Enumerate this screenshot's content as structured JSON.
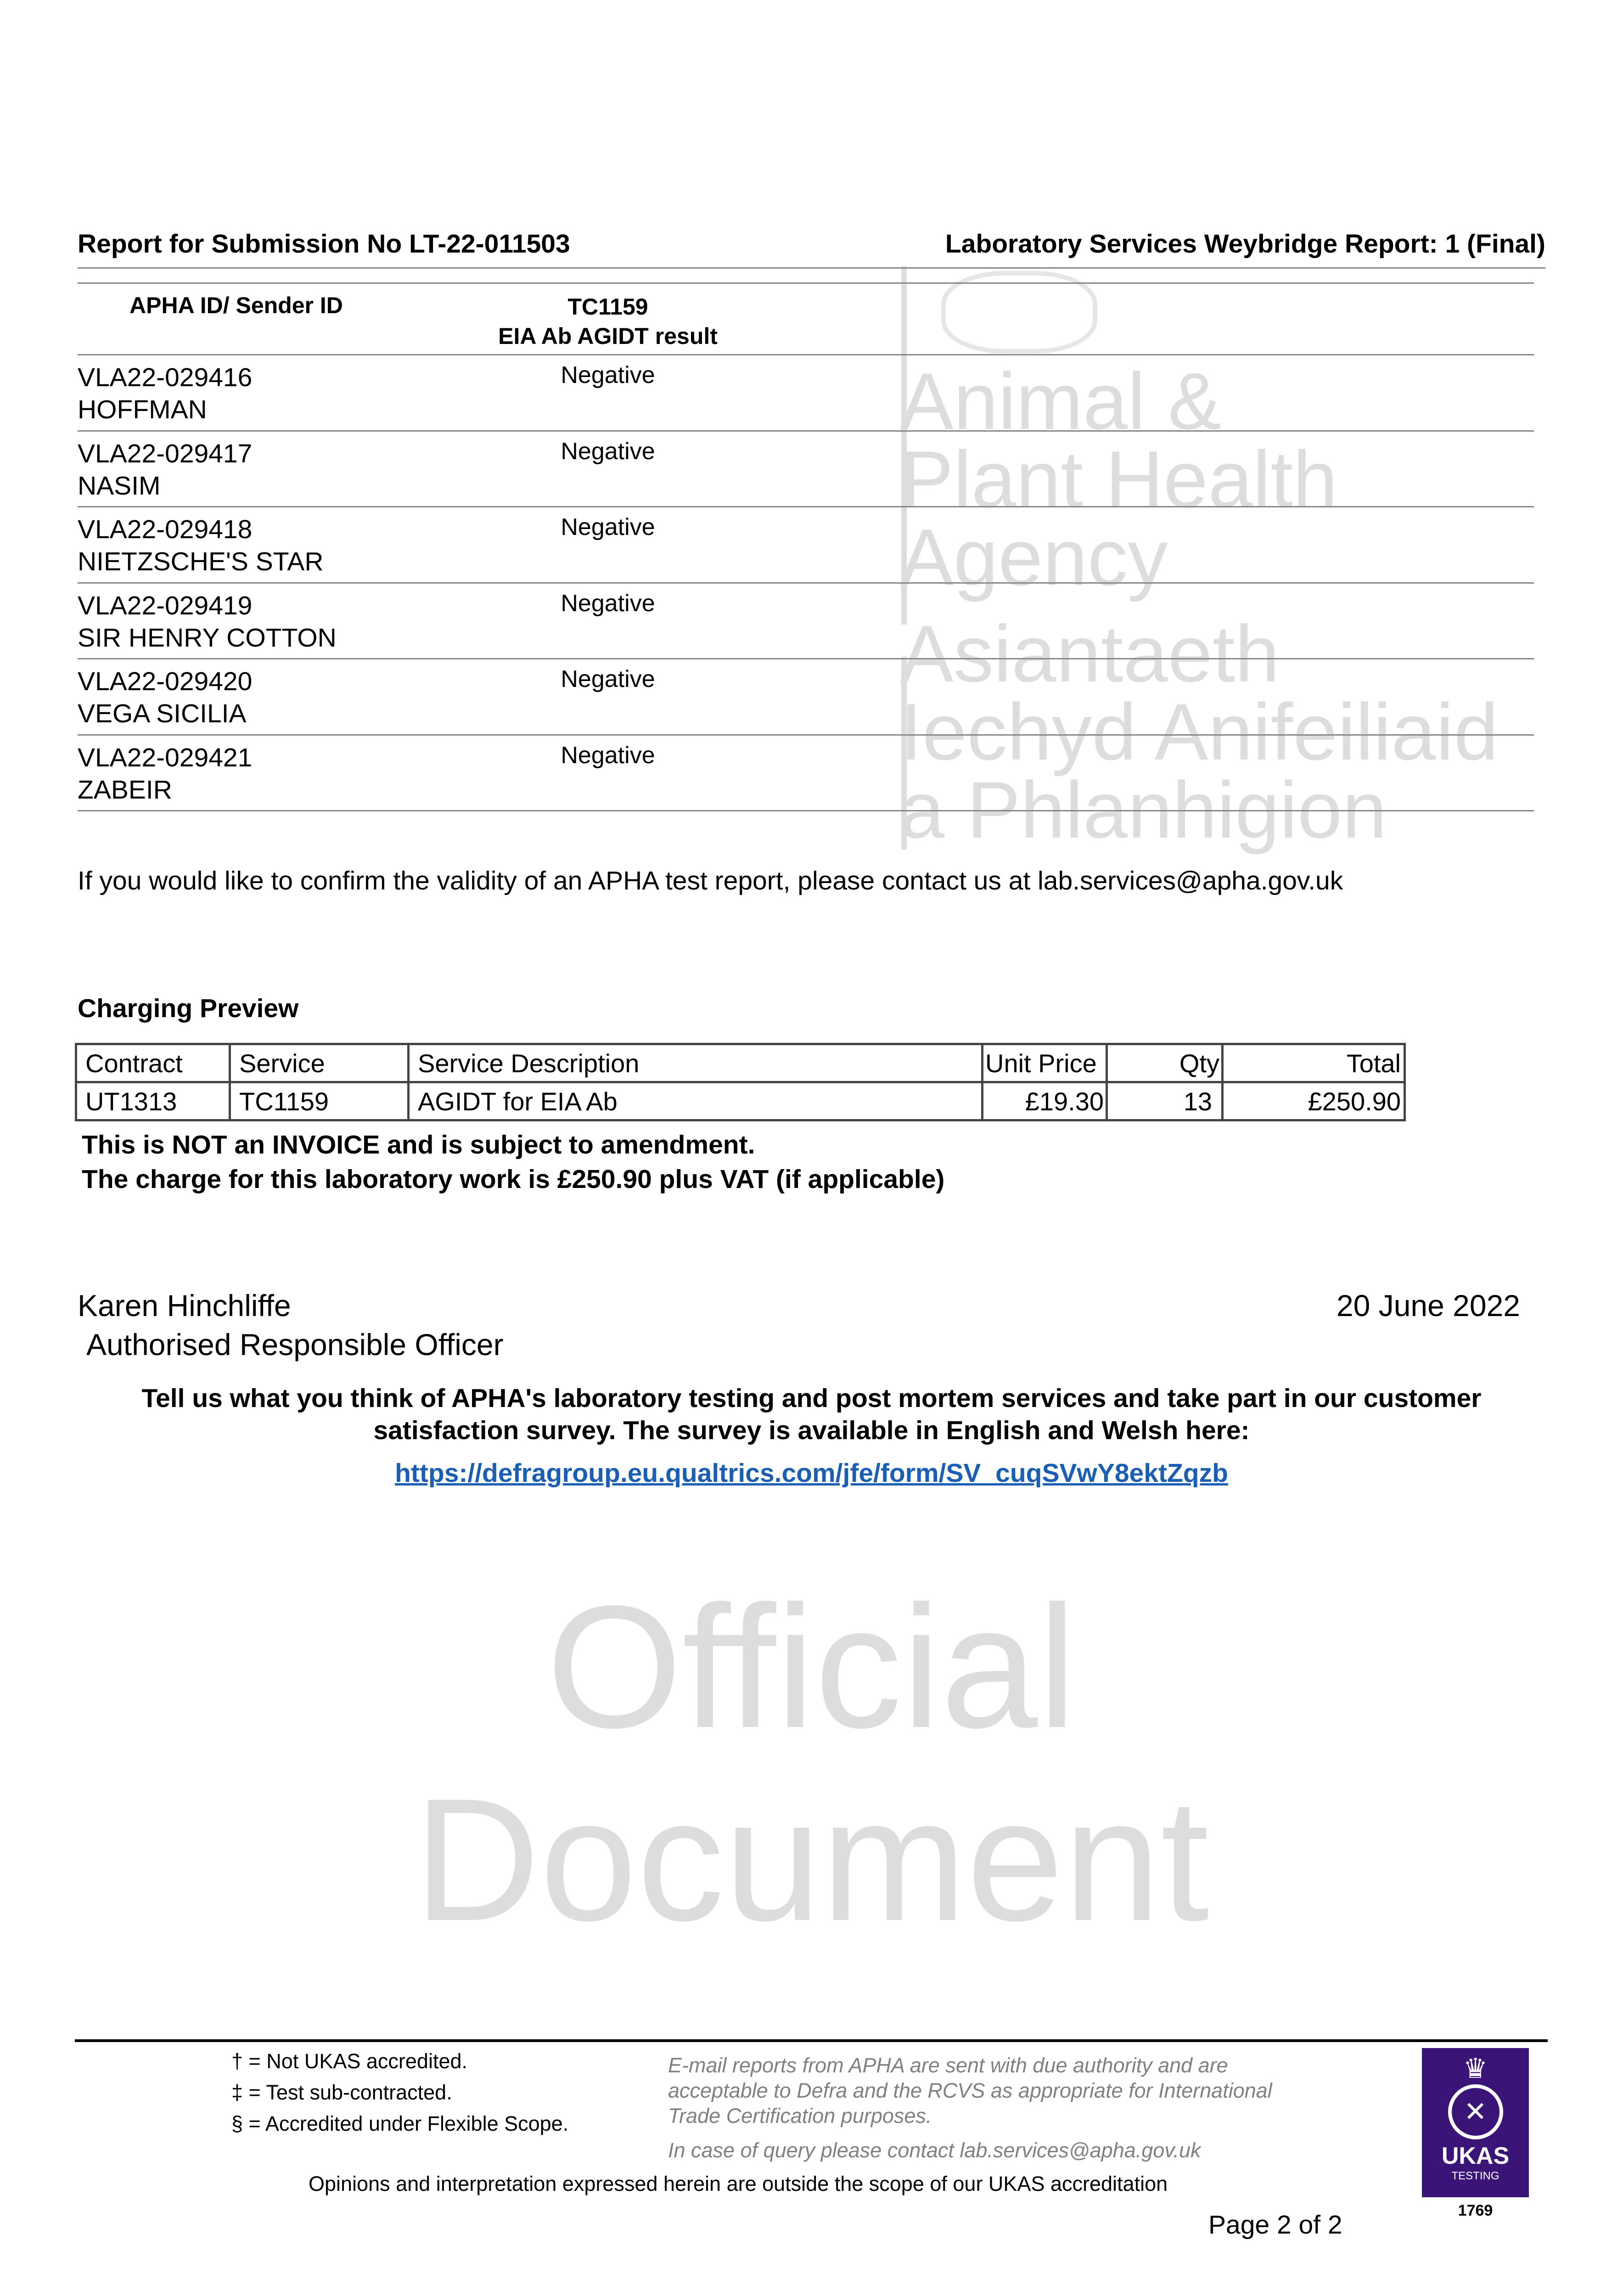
{
  "header": {
    "left": "Report for Submission No LT-22-011503",
    "right": "Laboratory Services Weybridge Report: 1 (Final)"
  },
  "results": {
    "col1": "APHA ID/ Sender ID",
    "col2_line1": "TC1159",
    "col2_line2": "EIA Ab AGIDT result",
    "rows": [
      {
        "id": "VLA22-029416",
        "name": "HOFFMAN",
        "result": "Negative"
      },
      {
        "id": "VLA22-029417",
        "name": "NASIM",
        "result": "Negative"
      },
      {
        "id": "VLA22-029418",
        "name": "NIETZSCHE'S STAR",
        "result": "Negative"
      },
      {
        "id": "VLA22-029419",
        "name": "SIR HENRY COTTON",
        "result": "Negative"
      },
      {
        "id": "VLA22-029420",
        "name": "VEGA SICILIA",
        "result": "Negative"
      },
      {
        "id": "VLA22-029421",
        "name": "ZABEIR",
        "result": "Negative"
      }
    ]
  },
  "watermark": {
    "agency_en": [
      "Animal &",
      "Plant Health",
      "Agency"
    ],
    "agency_cy": [
      "Asiantaeth",
      "Iechyd Anifeiliaid",
      "a Phlanhigion"
    ],
    "stamp": [
      "Official",
      "Document"
    ]
  },
  "validity_text": "If you would like to confirm the validity of an APHA test report, please contact us at lab.services@apha.gov.uk",
  "charging": {
    "title": "Charging Preview",
    "headers": [
      "Contract",
      "Service",
      "Service Description",
      "Unit Price",
      "Qty",
      "Total"
    ],
    "row": [
      "UT1313",
      "TC1159",
      "AGIDT for EIA Ab",
      "£19.30",
      "13",
      "£250.90"
    ],
    "note1": "This is NOT an INVOICE and is subject to amendment.",
    "note2": "The charge for this laboratory work is £250.90 plus VAT (if applicable)"
  },
  "signature": {
    "name": "Karen Hinchliffe",
    "role": "Authorised Responsible Officer",
    "date": "20 June 2022"
  },
  "survey": {
    "line1": "Tell us what you think of APHA's laboratory testing and post mortem services and take part in our customer",
    "line2": "satisfaction survey.  The survey is available in English and Welsh here:",
    "link": "https://defragroup.eu.qualtrics.com/jfe/form/SV_cuqSVwY8ektZqzb"
  },
  "footer": {
    "keys": [
      "† = Not UKAS accredited.",
      "‡ = Test sub-contracted.",
      "§ = Accredited under Flexible Scope."
    ],
    "email_note": [
      "E-mail reports from APHA are sent with due authority and are",
      "acceptable to Defra and the RCVS as appropriate for International",
      "Trade Certification purposes."
    ],
    "query": "In case of query please contact lab.services@apha.gov.uk",
    "opinions": "Opinions and interpretation expressed herein are outside the scope of our UKAS accreditation",
    "page": "Page 2 of  2",
    "ukas": {
      "label": "UKAS",
      "sub": "TESTING",
      "number": "1769",
      "color": "#3b1477"
    }
  }
}
